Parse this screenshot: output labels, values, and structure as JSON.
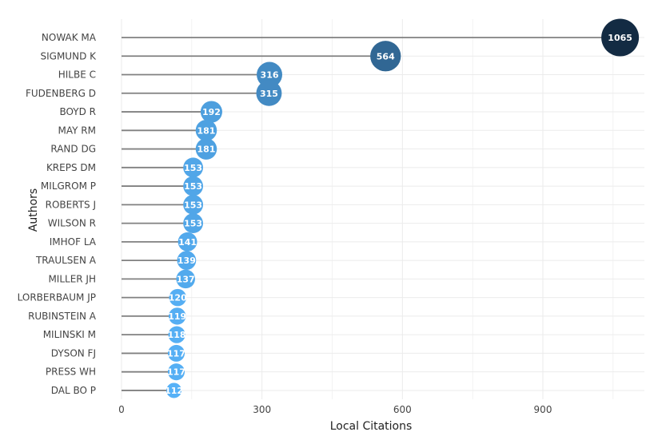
{
  "chart_data": {
    "type": "lollipop",
    "orientation": "horizontal",
    "xlabel": "Local Citations",
    "ylabel": "Authors",
    "xlim": [
      0,
      1120
    ],
    "xticks": [
      0,
      300,
      600,
      900
    ],
    "grid": true,
    "legend": "none",
    "colors": {
      "low": "#56b1f7",
      "high": "#132b43",
      "stem": "#808080",
      "grid": "#ebebeb"
    },
    "categories": [
      "NOWAK MA",
      "SIGMUND K",
      "HILBE C",
      "FUDENBERG D",
      "BOYD R",
      "MAY RM",
      "RAND DG",
      "KREPS DM",
      "MILGROM P",
      "ROBERTS J",
      "WILSON R",
      "IMHOF LA",
      "TRAULSEN A",
      "MILLER JH",
      "LORBERBAUM JP",
      "RUBINSTEIN A",
      "MILINSKI M",
      "DYSON FJ",
      "PRESS WH",
      "DAL BO P"
    ],
    "values": [
      1065,
      564,
      316,
      315,
      192,
      181,
      181,
      153,
      153,
      153,
      153,
      141,
      139,
      137,
      120,
      119,
      118,
      117,
      117,
      112
    ],
    "value_labels": [
      "1065",
      "564",
      "316",
      "315",
      "192",
      "181",
      "181",
      "153",
      "153",
      "153",
      "153",
      "141",
      "139",
      "137",
      "120",
      "119",
      "118",
      "117",
      "117",
      "112"
    ]
  }
}
